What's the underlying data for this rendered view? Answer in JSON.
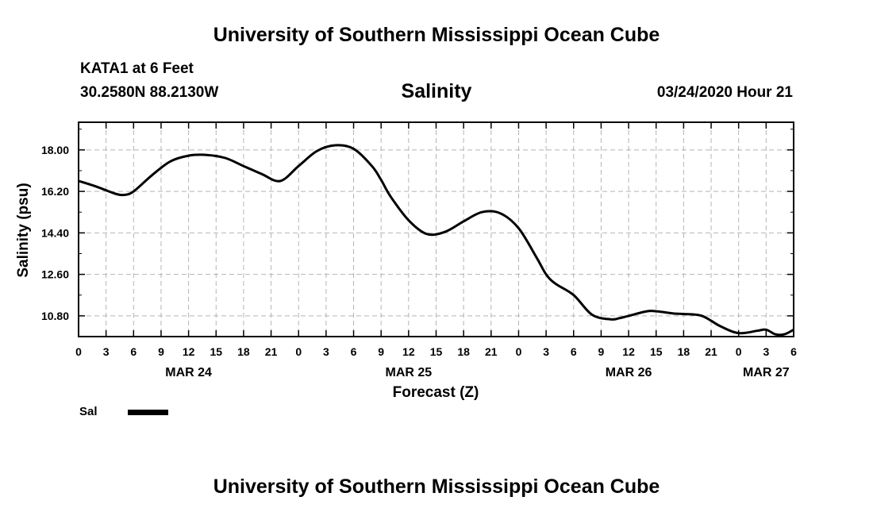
{
  "header": {
    "title": "University of Southern Mississippi Ocean Cube",
    "station": "KATA1 at 6 Feet",
    "coords": "30.2580N 88.2130W",
    "timestamp": "03/24/2020 Hour 21"
  },
  "footer": {
    "title": "University of Southern Mississippi Ocean Cube"
  },
  "legend": {
    "label": "Sal",
    "color": "#000000"
  },
  "chart_data": {
    "type": "line",
    "title": "Salinity",
    "xlabel": "Forecast (Z)",
    "ylabel": "Salinity (psu)",
    "x_unit": "hours since 03/24 00Z",
    "xlim": [
      0,
      78
    ],
    "ylim": [
      9.9,
      19.2
    ],
    "y_ticks": [
      "10.80",
      "12.60",
      "14.40",
      "16.20",
      "18.00"
    ],
    "x_tick_labels": [
      "0",
      "3",
      "6",
      "9",
      "12",
      "15",
      "18",
      "21",
      "0",
      "3",
      "6",
      "9",
      "12",
      "15",
      "18",
      "21",
      "0",
      "3",
      "6",
      "9",
      "12",
      "15",
      "18",
      "21",
      "0",
      "3",
      "6"
    ],
    "date_labels": [
      {
        "label": "MAR 24",
        "hour": 12
      },
      {
        "label": "MAR 25",
        "hour": 36
      },
      {
        "label": "MAR 26",
        "hour": 60
      },
      {
        "label": "MAR 27",
        "hour": 75
      }
    ],
    "grid": true,
    "series": [
      {
        "name": "Sal",
        "x": [
          0,
          2,
          4,
          5,
          6,
          8,
          10,
          12,
          14,
          16,
          18,
          20,
          22,
          24,
          26,
          28,
          30,
          32,
          33,
          34,
          36,
          38,
          40,
          42,
          44,
          46,
          48,
          50,
          51,
          52,
          54,
          56,
          58,
          59,
          60,
          62,
          63,
          64,
          65,
          66,
          68,
          70,
          72,
          74,
          75,
          76,
          77,
          78
        ],
        "y": [
          16.65,
          16.4,
          16.1,
          16.05,
          16.2,
          16.9,
          17.5,
          17.75,
          17.78,
          17.65,
          17.3,
          16.95,
          16.65,
          17.3,
          17.95,
          18.2,
          18.05,
          17.3,
          16.7,
          16.0,
          14.95,
          14.35,
          14.45,
          14.9,
          15.3,
          15.25,
          14.6,
          13.3,
          12.6,
          12.2,
          11.7,
          10.85,
          10.65,
          10.7,
          10.8,
          11.0,
          11.0,
          10.95,
          10.9,
          10.88,
          10.8,
          10.35,
          10.05,
          10.15,
          10.2,
          10.0,
          10.0,
          10.2
        ]
      }
    ]
  }
}
